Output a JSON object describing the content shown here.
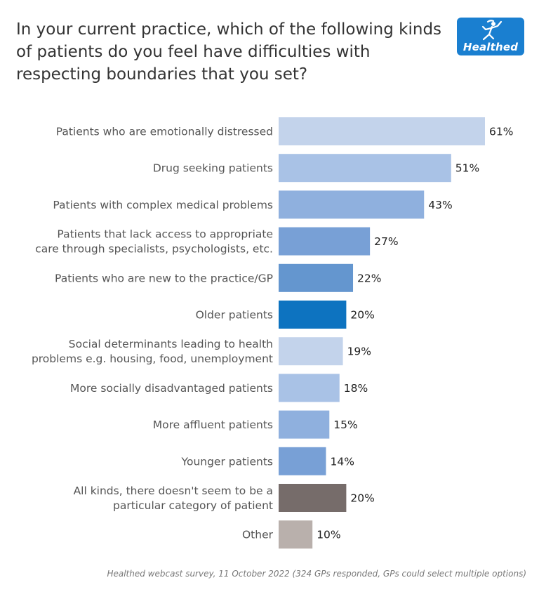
{
  "title": "In your current practice, which of the following kinds of patients do you feel have difficulties with respecting boundaries that you set?",
  "logo": {
    "text": "Healthed",
    "icon": "running-figure-icon"
  },
  "footnote": "Healthed webcast survey, 11 October 2022 (324 GPs responded, GPs could select multiple options)",
  "chart_data": {
    "type": "bar",
    "orientation": "horizontal",
    "categories": [
      [
        "Patients who are emotionally distressed"
      ],
      [
        "Drug seeking patients"
      ],
      [
        "Patients with complex medical problems"
      ],
      [
        "Patients that lack access to appropriate",
        "care through specialists, psychologists, etc."
      ],
      [
        "Patients who are new to the practice/GP"
      ],
      [
        "Older patients"
      ],
      [
        "Social determinants leading to health",
        "problems e.g. housing, food, unemployment"
      ],
      [
        "More socially disadvantaged patients"
      ],
      [
        "More affluent patients"
      ],
      [
        "Younger patients"
      ],
      [
        "All kinds, there doesn't seem to be a",
        "particular category of patient"
      ],
      [
        "Other"
      ]
    ],
    "values": [
      61,
      51,
      43,
      27,
      22,
      20,
      19,
      18,
      15,
      14,
      20,
      10
    ],
    "value_labels": [
      "61%",
      "51%",
      "43%",
      "27%",
      "22%",
      "20%",
      "19%",
      "18%",
      "15%",
      "14%",
      "20%",
      "10%"
    ],
    "colors": [
      "#c3d3eb",
      "#a9c2e6",
      "#8fb0de",
      "#78a0d6",
      "#6496cf",
      "#0d73c0",
      "#c3d3eb",
      "#a9c2e6",
      "#8fb0de",
      "#78a0d6",
      "#766c6a",
      "#b9b0ac"
    ],
    "xlim": [
      0,
      61
    ],
    "xlabel": "",
    "ylabel": "",
    "grid": false,
    "legend": "none"
  }
}
